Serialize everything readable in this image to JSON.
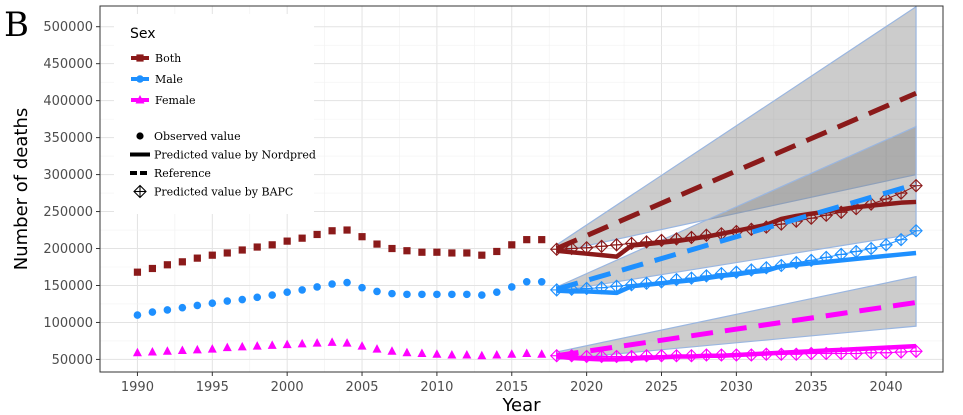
{
  "panel_label": "B",
  "chart_data": {
    "type": "line",
    "title": "",
    "xlabel": "Year",
    "ylabel": "Number of deaths",
    "xlim": [
      1987.5,
      2043.8
    ],
    "ylim": [
      33000,
      528000
    ],
    "x_ticks": [
      1990,
      1995,
      2000,
      2005,
      2010,
      2015,
      2020,
      2025,
      2030,
      2035,
      2040
    ],
    "y_ticks": [
      50000,
      100000,
      150000,
      200000,
      250000,
      300000,
      350000,
      400000,
      450000,
      500000
    ],
    "y_tick_labels": [
      "50000",
      "100000",
      "150000",
      "200000",
      "250000",
      "300000",
      "350000",
      "400000",
      "450000",
      "500000"
    ],
    "grid": true,
    "background": "white",
    "legend": {
      "placement": "top-left",
      "title": "Sex",
      "sex_entries": [
        {
          "name": "Both",
          "color": "#8b1a1a",
          "marker": "square"
        },
        {
          "name": "Male",
          "color": "#1e90ff",
          "marker": "circle"
        },
        {
          "name": "Female",
          "color": "#ff00ff",
          "marker": "triangle"
        }
      ],
      "type_entries": [
        {
          "name": "Observed value",
          "symbol": "dot"
        },
        {
          "name": "Predicted value by Nordpred",
          "symbol": "solid-line"
        },
        {
          "name": "Reference",
          "symbol": "dashed-line"
        },
        {
          "name": "Predicted value by BAPC",
          "symbol": "diamond-plus"
        }
      ]
    },
    "series": [
      {
        "name": "Both",
        "color": "#8b1a1a",
        "marker": "square",
        "observed": {
          "x": [
            1990,
            1991,
            1992,
            1993,
            1994,
            1995,
            1996,
            1997,
            1998,
            1999,
            2000,
            2001,
            2002,
            2003,
            2004,
            2005,
            2006,
            2007,
            2008,
            2009,
            2010,
            2011,
            2012,
            2013,
            2014,
            2015,
            2016,
            2017
          ],
          "y": [
            168000,
            173000,
            178000,
            182000,
            187000,
            191000,
            194000,
            198000,
            202000,
            205000,
            210000,
            214000,
            219000,
            224000,
            225000,
            216000,
            206000,
            200000,
            197000,
            195000,
            195000,
            194000,
            194000,
            191000,
            196000,
            205000,
            212000,
            212000
          ]
        },
        "nordpred": {
          "x": [
            2018,
            2019,
            2020,
            2021,
            2022,
            2023,
            2024,
            2025,
            2026,
            2027,
            2028,
            2029,
            2030,
            2031,
            2032,
            2033,
            2034,
            2035,
            2036,
            2037,
            2038,
            2039,
            2040,
            2041,
            2042
          ],
          "y": [
            197000,
            195000,
            193000,
            191000,
            189000,
            204000,
            206000,
            208000,
            210000,
            213000,
            216000,
            220000,
            224000,
            228000,
            232000,
            240000,
            244000,
            247000,
            250000,
            253000,
            256000,
            258000,
            260000,
            262000,
            263000
          ]
        },
        "bapc": {
          "x": [
            2018,
            2019,
            2020,
            2021,
            2022,
            2023,
            2024,
            2025,
            2026,
            2027,
            2028,
            2029,
            2030,
            2031,
            2032,
            2033,
            2034,
            2035,
            2036,
            2037,
            2038,
            2039,
            2040,
            2041,
            2042
          ],
          "y": [
            199000,
            200000,
            201000,
            203000,
            205000,
            207000,
            209000,
            211000,
            213000,
            215000,
            218000,
            220000,
            223000,
            226000,
            229000,
            233000,
            237000,
            241000,
            245000,
            249000,
            254000,
            260000,
            267000,
            275000,
            285000
          ]
        },
        "reference": {
          "x": [
            2018,
            2042
          ],
          "y": [
            200000,
            410000
          ]
        },
        "band": {
          "x": [
            2018,
            2042
          ],
          "lower": [
            195000,
            300000
          ],
          "upper": [
            205000,
            527000
          ]
        }
      },
      {
        "name": "Male",
        "color": "#1e90ff",
        "marker": "circle",
        "observed": {
          "x": [
            1990,
            1991,
            1992,
            1993,
            1994,
            1995,
            1996,
            1997,
            1998,
            1999,
            2000,
            2001,
            2002,
            2003,
            2004,
            2005,
            2006,
            2007,
            2008,
            2009,
            2010,
            2011,
            2012,
            2013,
            2014,
            2015,
            2016,
            2017
          ],
          "y": [
            110000,
            114000,
            117000,
            120000,
            123000,
            126000,
            129000,
            131000,
            134000,
            137000,
            141000,
            144000,
            148000,
            152000,
            154000,
            147000,
            142000,
            139000,
            138000,
            138000,
            138000,
            138000,
            138000,
            137000,
            141000,
            148000,
            155000,
            155000
          ]
        },
        "nordpred": {
          "x": [
            2018,
            2019,
            2020,
            2021,
            2022,
            2023,
            2024,
            2025,
            2026,
            2027,
            2028,
            2029,
            2030,
            2031,
            2032,
            2033,
            2034,
            2035,
            2036,
            2037,
            2038,
            2039,
            2040,
            2041,
            2042
          ],
          "y": [
            143000,
            142000,
            142000,
            141000,
            140000,
            149000,
            151000,
            153000,
            155000,
            157000,
            160000,
            163000,
            165000,
            168000,
            170000,
            176000,
            178000,
            180000,
            182000,
            184000,
            186000,
            188000,
            190000,
            192000,
            194000
          ]
        },
        "bapc": {
          "x": [
            2018,
            2019,
            2020,
            2021,
            2022,
            2023,
            2024,
            2025,
            2026,
            2027,
            2028,
            2029,
            2030,
            2031,
            2032,
            2033,
            2034,
            2035,
            2036,
            2037,
            2038,
            2039,
            2040,
            2041,
            2042
          ],
          "y": [
            144000,
            145000,
            146000,
            147000,
            149000,
            151000,
            153000,
            155000,
            158000,
            160000,
            163000,
            166000,
            168000,
            171000,
            174000,
            177000,
            181000,
            184000,
            188000,
            192000,
            196000,
            200000,
            205000,
            212000,
            224000
          ]
        },
        "reference": {
          "x": [
            2018,
            2042
          ],
          "y": [
            145000,
            287000
          ]
        },
        "band": {
          "x": [
            2018,
            2042
          ],
          "lower": [
            142000,
            220000
          ],
          "upper": [
            148000,
            365000
          ]
        }
      },
      {
        "name": "Female",
        "color": "#ff00ff",
        "marker": "triangle",
        "observed": {
          "x": [
            1990,
            1991,
            1992,
            1993,
            1994,
            1995,
            1996,
            1997,
            1998,
            1999,
            2000,
            2001,
            2002,
            2003,
            2004,
            2005,
            2006,
            2007,
            2008,
            2009,
            2010,
            2011,
            2012,
            2013,
            2014,
            2015,
            2016,
            2017
          ],
          "y": [
            59000,
            60000,
            61000,
            62000,
            63000,
            64000,
            66000,
            67000,
            68000,
            69000,
            70000,
            71000,
            72000,
            73000,
            72000,
            68000,
            64000,
            61000,
            59000,
            58000,
            57000,
            56000,
            56000,
            55000,
            56000,
            57000,
            58000,
            57000
          ]
        },
        "nordpred": {
          "x": [
            2018,
            2019,
            2020,
            2021,
            2022,
            2023,
            2024,
            2025,
            2026,
            2027,
            2028,
            2029,
            2030,
            2031,
            2032,
            2033,
            2034,
            2035,
            2036,
            2037,
            2038,
            2039,
            2040,
            2041,
            2042
          ],
          "y": [
            54000,
            52000,
            51000,
            50000,
            50000,
            51000,
            52000,
            53000,
            54000,
            54000,
            55000,
            55000,
            56000,
            57000,
            58000,
            59000,
            60000,
            61000,
            62000,
            63000,
            64000,
            65000,
            66000,
            67000,
            68000
          ]
        },
        "bapc": {
          "x": [
            2018,
            2019,
            2020,
            2021,
            2022,
            2023,
            2024,
            2025,
            2026,
            2027,
            2028,
            2029,
            2030,
            2031,
            2032,
            2033,
            2034,
            2035,
            2036,
            2037,
            2038,
            2039,
            2040,
            2041,
            2042
          ],
          "y": [
            55000,
            55000,
            54000,
            54000,
            54000,
            54000,
            55000,
            55000,
            55000,
            55000,
            56000,
            56000,
            56000,
            56000,
            57000,
            57000,
            57000,
            58000,
            58000,
            58000,
            58000,
            59000,
            59000,
            60000,
            61000
          ]
        },
        "reference": {
          "x": [
            2018,
            2042
          ],
          "y": [
            55000,
            127000
          ]
        },
        "band": {
          "x": [
            2018,
            2042
          ],
          "lower": [
            50000,
            95000
          ],
          "upper": [
            60000,
            162000
          ]
        }
      }
    ]
  }
}
